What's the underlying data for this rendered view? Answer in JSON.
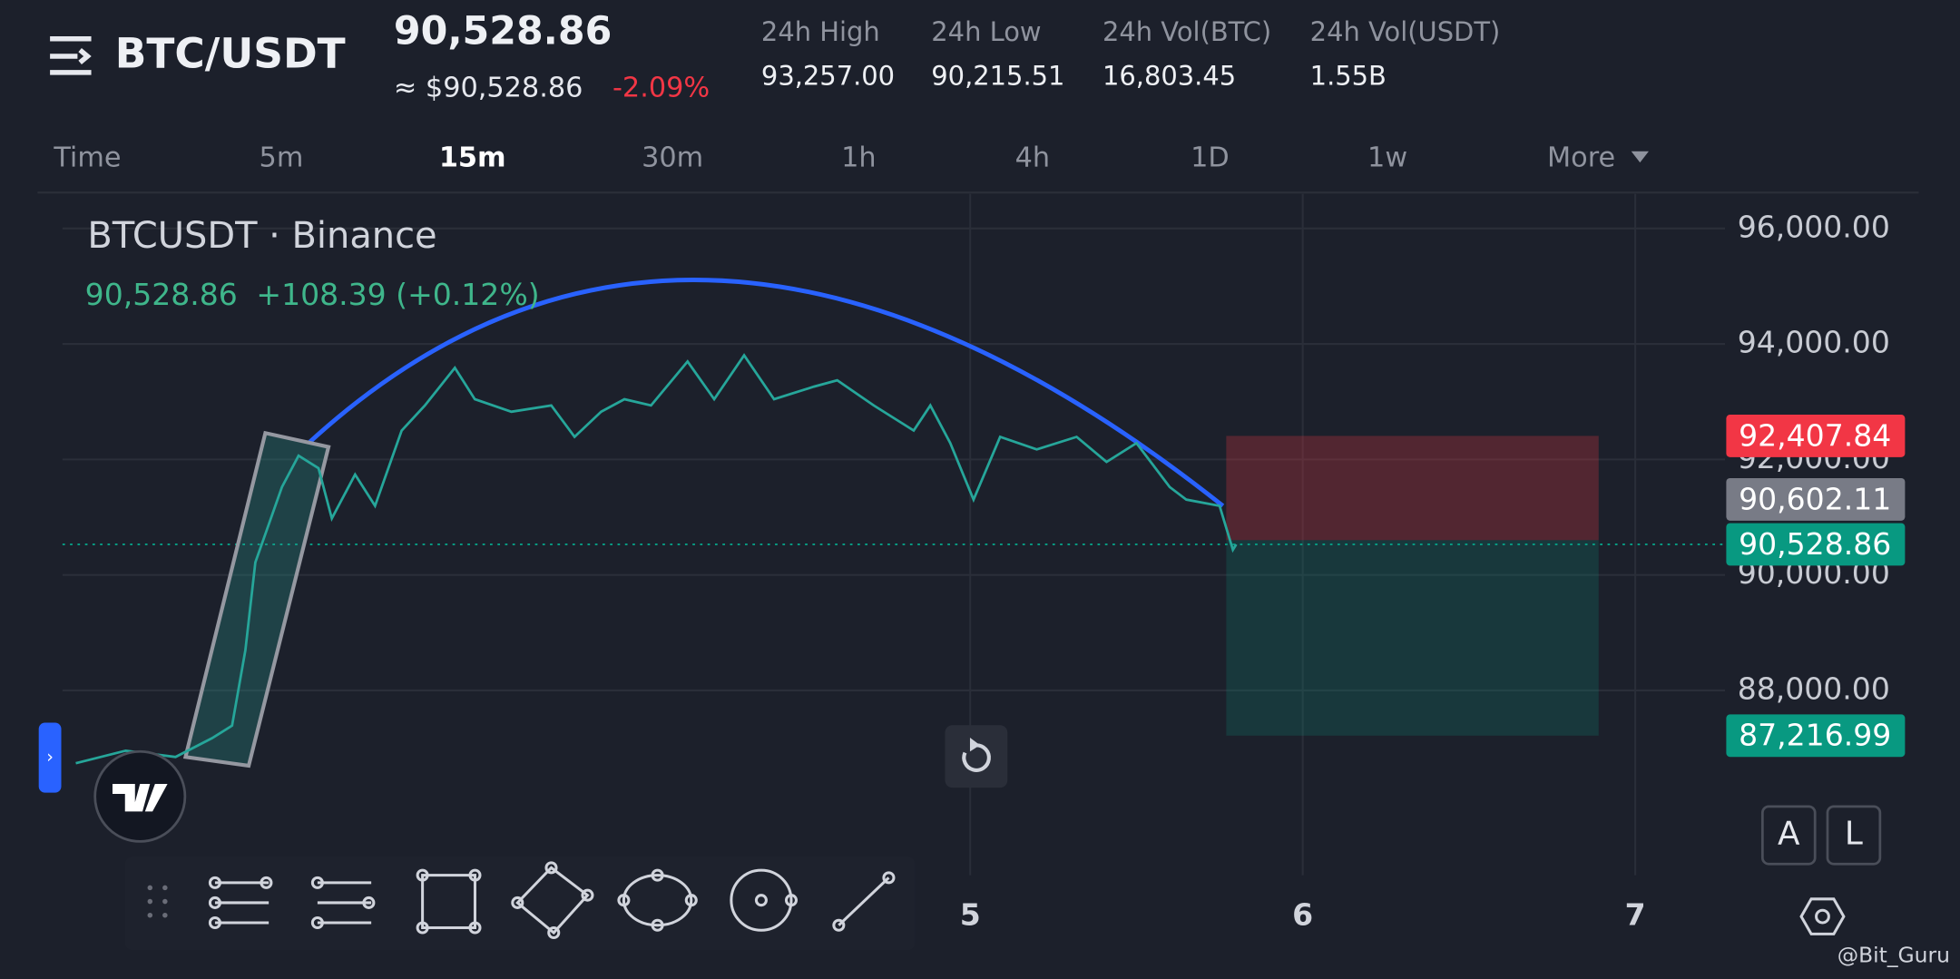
{
  "header": {
    "pair": "BTC/USDT",
    "price": "90,528.86",
    "usd_price": "≈ $90,528.86",
    "change": "-2.09%",
    "stats": [
      {
        "label": "24h High",
        "value": "93,257.00"
      },
      {
        "label": "24h Low",
        "value": "90,215.51"
      },
      {
        "label": "24h Vol(BTC)",
        "value": "16,803.45"
      },
      {
        "label": "24h Vol(USDT)",
        "value": "1.55B"
      }
    ]
  },
  "intervals": [
    "Time",
    "5m",
    "15m",
    "30m",
    "1h",
    "4h",
    "1D",
    "1w",
    "More"
  ],
  "active_interval": 2,
  "scale_buttons": [
    "A",
    "L"
  ],
  "watermark": "@Bit_Guru",
  "chart_data": {
    "type": "line",
    "title": "BTCUSDT · Binance",
    "last_price": "90,528.86",
    "change": "+108.39 (+0.12%)",
    "color": "#26a69a",
    "x": [
      2.31,
      2.46,
      2.61,
      2.72,
      2.78,
      2.82,
      2.85,
      2.89,
      2.93,
      2.98,
      3.04,
      3.08,
      3.15,
      3.21,
      3.29,
      3.36,
      3.45,
      3.51,
      3.62,
      3.74,
      3.81,
      3.89,
      3.96,
      4.04,
      4.15,
      4.23,
      4.32,
      4.41,
      4.53,
      4.6,
      4.71,
      4.83,
      4.88,
      4.94,
      5.01,
      5.09,
      5.2,
      5.32,
      5.41,
      5.5,
      5.6,
      5.65,
      5.75,
      5.79,
      5.8
    ],
    "values": [
      86739,
      86957,
      86848,
      87174,
      87391,
      88696,
      90217,
      90870,
      91522,
      92065,
      91848,
      90978,
      91739,
      91196,
      92500,
      92935,
      93587,
      93043,
      92826,
      92935,
      92391,
      92826,
      93043,
      92935,
      93696,
      93043,
      93804,
      93043,
      93261,
      93370,
      92935,
      92500,
      92935,
      92283,
      91304,
      92391,
      92174,
      92391,
      91957,
      92283,
      91522,
      91304,
      91196,
      90435,
      90528.86
    ],
    "xlim": [
      2.27,
      7.27
    ],
    "xticks": [
      5,
      6,
      7
    ],
    "ylim": [
      84800,
      96600
    ],
    "yticks": [
      {
        "value": 88000,
        "label": "88,000.00"
      },
      {
        "value": 90000,
        "label": "90,000.00"
      },
      {
        "value": 92000,
        "label": "92,000.00"
      },
      {
        "value": 94000,
        "label": "94,000.00"
      },
      {
        "value": 96000,
        "label": "96,000.00"
      }
    ],
    "grid": true,
    "price_labels": [
      {
        "value": 92407.84,
        "label": "92,407.84",
        "color": "#f23645"
      },
      {
        "value": 90528.86,
        "label": "90,528.86",
        "color": "#089981"
      },
      {
        "value": 90602.11,
        "label": "90,602.11",
        "color": "#787b86"
      },
      {
        "value": 87216.99,
        "label": "87,216.99",
        "color": "#089981"
      }
    ],
    "position": {
      "x": [
        5.77,
        6.89
      ],
      "loss_color": "#f23645",
      "profit_color": "#089981"
    },
    "drawings": [
      {
        "kind": "arc",
        "color": "#2962ff",
        "x": [
          3.01,
          4.28,
          5.76
        ],
        "y": [
          92283,
          95087,
          91196
        ]
      },
      {
        "kind": "rectangle",
        "color": "#9598a1",
        "x": [
          2.64,
          2.88,
          3.07,
          2.83
        ],
        "y": [
          86848,
          92457,
          92217,
          86696
        ]
      }
    ]
  }
}
